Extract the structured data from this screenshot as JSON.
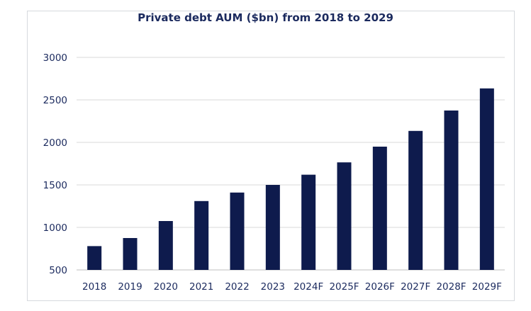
{
  "chart_data": {
    "type": "bar",
    "title": "Private debt AUM ($bn) from 2018 to 2029",
    "xlabel": "",
    "ylabel": "",
    "categories": [
      "2018",
      "2019",
      "2020",
      "2021",
      "2022",
      "2023",
      "2024F",
      "2025F",
      "2026F",
      "2027F",
      "2028F",
      "2029F"
    ],
    "values": [
      780,
      875,
      1075,
      1310,
      1410,
      1500,
      1620,
      1765,
      1950,
      2135,
      2375,
      2635
    ],
    "ylim": [
      500,
      3000
    ],
    "yticks": [
      500,
      1000,
      1500,
      2000,
      2500,
      3000
    ],
    "grid": true,
    "legend": "none",
    "colors": {
      "bar": "#0e1b4d",
      "grid": "#d9d9d9",
      "text": "#1b2a5e",
      "border": "#d6d9de"
    }
  }
}
